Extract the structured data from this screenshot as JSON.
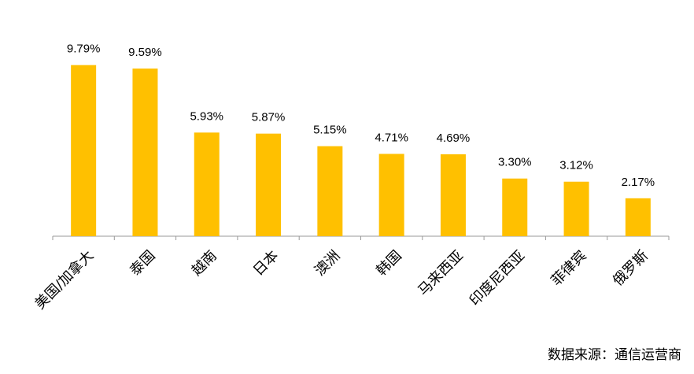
{
  "chart_data": {
    "type": "bar",
    "categories": [
      "美国/加拿大",
      "泰国",
      "越南",
      "日本",
      "澳洲",
      "韩国",
      "马来西亚",
      "印度尼西亚",
      "菲律宾",
      "俄罗斯"
    ],
    "values": [
      9.79,
      9.59,
      5.93,
      5.87,
      5.15,
      4.71,
      4.69,
      3.3,
      3.12,
      2.17
    ],
    "value_labels": [
      "9.79%",
      "9.59%",
      "5.93%",
      "5.87%",
      "5.15%",
      "4.71%",
      "4.69%",
      "3.30%",
      "3.12%",
      "2.17%"
    ],
    "color": "#ffc000",
    "annotation": "数据来源：通信运营商"
  }
}
